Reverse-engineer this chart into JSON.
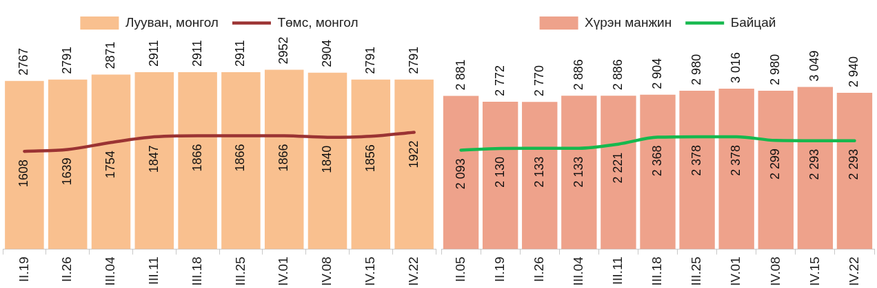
{
  "chart_data": [
    {
      "type": "bar",
      "categories": [
        "II.19",
        "II.26",
        "III.04",
        "III.11",
        "III.18",
        "III.25",
        "IV.01",
        "IV.08",
        "IV.15",
        "IV.22"
      ],
      "series": [
        {
          "name": "Лууван, монгол",
          "type": "bar",
          "color": "#f9c08f",
          "values": [
            2767,
            2791,
            2871,
            2911,
            2911,
            2911,
            2952,
            2904,
            2791,
            2791
          ]
        },
        {
          "name": "Төмс, монгол",
          "type": "line",
          "axis": "y2",
          "color": "#9b3333",
          "values": [
            1608,
            1639,
            1754,
            1847,
            1866,
            1866,
            1866,
            1840,
            1856,
            1922
          ]
        }
      ],
      "data_labels": true,
      "legend": "top",
      "grid": false,
      "tick_labels": "x",
      "marker": "none",
      "line_style": "solid"
    },
    {
      "type": "bar",
      "categories": [
        "II.05",
        "II.19",
        "II.26",
        "III.04",
        "III.11",
        "III.18",
        "III.25",
        "IV.01",
        "IV.08",
        "IV.15",
        "IV.22"
      ],
      "series": [
        {
          "name": "Хүрэн манжин",
          "type": "bar",
          "color": "#eea28b",
          "values": [
            2881,
            2772,
            2770,
            2886,
            2886,
            2904,
            2980,
            3016,
            2980,
            3049,
            2940
          ],
          "value_labels": [
            "2 881",
            "2 772",
            "2 770",
            "2 886",
            "2 886",
            "2 904",
            "2 980",
            "3 016",
            "2 980",
            "3 049",
            "2 940"
          ]
        },
        {
          "name": "Байцай",
          "type": "line",
          "axis": "y2",
          "color": "#16b84e",
          "values": [
            2093,
            2130,
            2133,
            2133,
            2221,
            2368,
            2378,
            2378,
            2299,
            2293,
            2293
          ],
          "value_labels": [
            "2 093",
            "2 130",
            "2 133",
            "2 133",
            "2 221",
            "2 368",
            "2 378",
            "2 378",
            "2 299",
            "2 293",
            "2 293"
          ]
        }
      ],
      "legend": "top",
      "grid": false,
      "tick_labels": "x",
      "marker": "none",
      "line_style": "solid"
    }
  ]
}
